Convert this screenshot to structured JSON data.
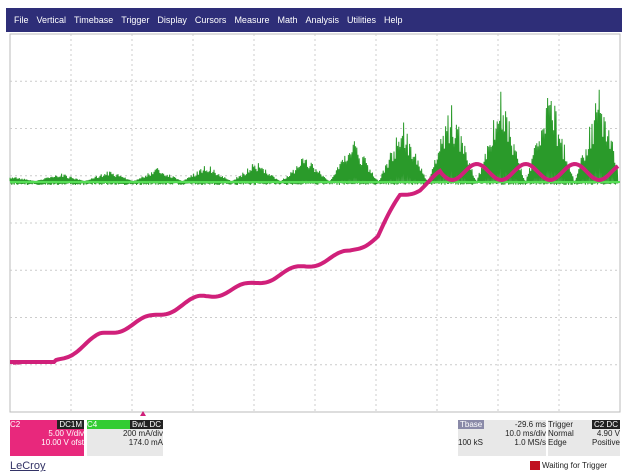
{
  "menu": [
    "File",
    "Vertical",
    "Timebase",
    "Trigger",
    "Display",
    "Cursors",
    "Measure",
    "Math",
    "Analysis",
    "Utilities",
    "Help"
  ],
  "traces": {
    "c4": "C4",
    "c2": "C2"
  },
  "channels": [
    {
      "name": "C2",
      "coupling": "DC1M",
      "scale": "5.00 V/div",
      "offset": "10.00 V ofst"
    },
    {
      "name": "C4",
      "coupling": "BwL DC",
      "scale": "200 mA/div",
      "offset": "174.0 mA"
    }
  ],
  "timebase": {
    "label": "Tbase",
    "delay": "-29.6 ms",
    "scale": "10.0 ms/div",
    "samples": "100 kS",
    "rate": "1.0 MS/s"
  },
  "trigger": {
    "label": "Trigger",
    "source": "C2 DC",
    "mode": "Normal",
    "level": "4.90 V",
    "type": "Edge",
    "slope": "Positive"
  },
  "brand": "LeCroy",
  "status": "Waiting for Trigger"
}
